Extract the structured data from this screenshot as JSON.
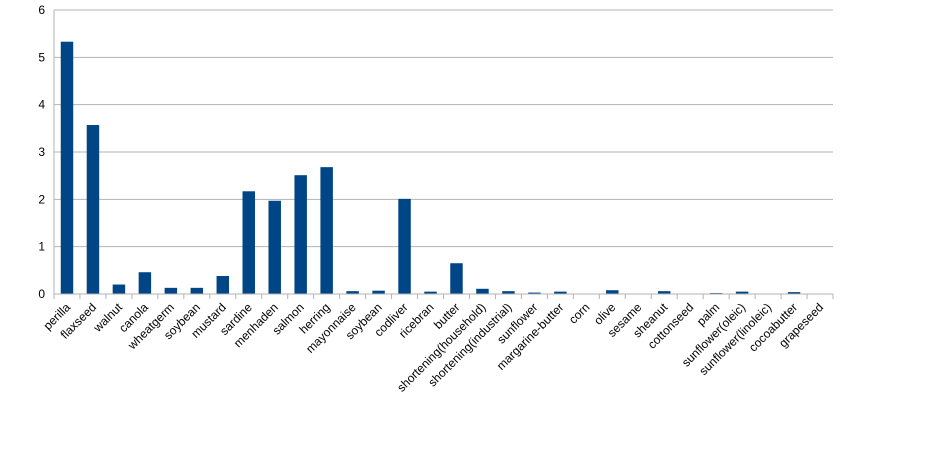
{
  "chart_data": {
    "type": "bar",
    "categories": [
      "perilla",
      "flaxseed",
      "walnut",
      "canola",
      "wheatgerm",
      "soybean",
      "mustard",
      "sardine",
      "menhaden",
      "salmon",
      "herring",
      "mayonnaise",
      "soybean",
      "codliver",
      "ricebran",
      "butter",
      "shortening(household)",
      "shortening(industrial)",
      "sunflower",
      "margarine-butter",
      "corn",
      "olive",
      "sesame",
      "sheanut",
      "cottonseed",
      "palm",
      "sunflower(oleic)",
      "sunflower(linoleic)",
      "cocoabutter",
      "grapeseed"
    ],
    "values": [
      5.33,
      3.57,
      0.2,
      0.46,
      0.13,
      0.13,
      0.38,
      2.17,
      1.97,
      2.51,
      2.68,
      0.06,
      0.07,
      2.01,
      0.05,
      0.65,
      0.11,
      0.06,
      0.03,
      0.05,
      0.01,
      0.08,
      0.01,
      0.06,
      0.0,
      0.02,
      0.05,
      0.0,
      0.04,
      0.0
    ],
    "yticks": [
      "0",
      "1",
      "2",
      "3",
      "4",
      "5",
      "6"
    ],
    "ylim": [
      0,
      6
    ],
    "grid": true,
    "bar_color": "#004586",
    "grid_color": "#b3b3b3"
  }
}
